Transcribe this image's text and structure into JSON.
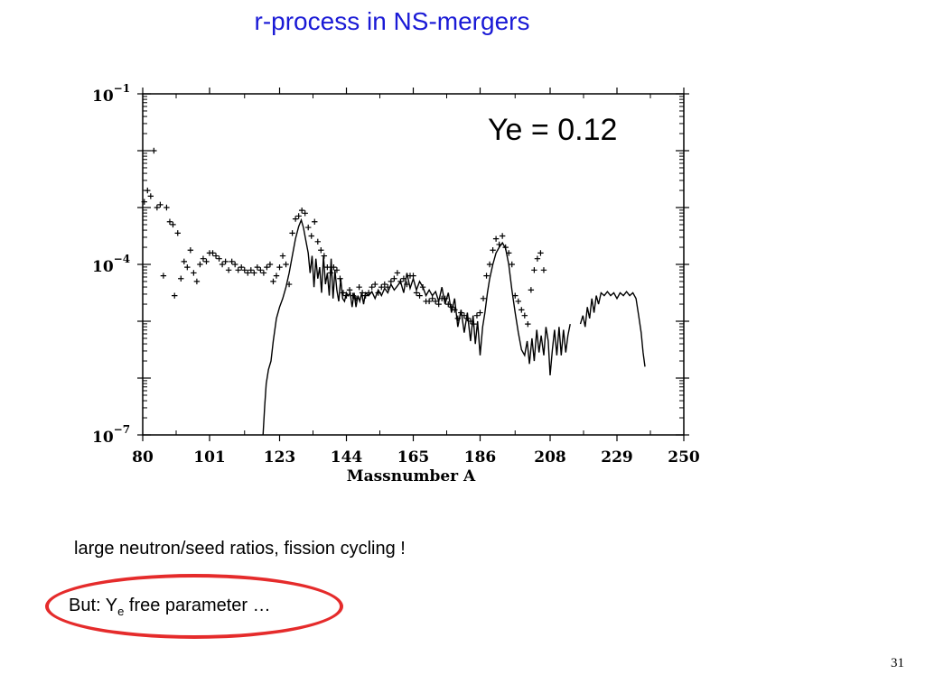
{
  "slide": {
    "title": "r-process in NS-mergers",
    "bullet1": "large neutron/seed ratios, fission cycling !",
    "bullet2_pre": "But: Y",
    "bullet2_sub": "e",
    "bullet2_post": " free parameter …",
    "page_number": "31",
    "highlight_color": "#e52b2b",
    "title_color": "#1a1ad6"
  },
  "chart_data": {
    "type": "line",
    "title": "",
    "annotation": "Ye = 0.12",
    "xlabel": "Massnumber A",
    "ylabel": "",
    "xlim": [
      80,
      250
    ],
    "ylim_log10": [
      -7,
      -1
    ],
    "y_scale": "log",
    "x_ticks": [
      80,
      101,
      123,
      144,
      165,
      186,
      208,
      229,
      250
    ],
    "y_tick_labels": [
      {
        "base": "10",
        "exp": "−1",
        "log10": -1
      },
      {
        "base": "10",
        "exp": "−4",
        "log10": -4
      },
      {
        "base": "10",
        "exp": "−7",
        "log10": -7
      }
    ],
    "grid": false,
    "series": [
      {
        "style": "line",
        "segments": [
          [
            [
              117.8,
              -7.0
            ],
            [
              118.3,
              -6.5
            ],
            [
              118.8,
              -6.1
            ],
            [
              119.5,
              -5.85
            ],
            [
              120.3,
              -5.7
            ],
            [
              121,
              -5.35
            ],
            [
              122,
              -4.95
            ],
            [
              123,
              -4.75
            ],
            [
              124,
              -4.6
            ],
            [
              125,
              -4.4
            ],
            [
              126,
              -4.15
            ],
            [
              127,
              -3.85
            ],
            [
              128,
              -3.55
            ],
            [
              129,
              -3.33
            ],
            [
              129.8,
              -3.22
            ],
            [
              130.5,
              -3.35
            ],
            [
              131.3,
              -3.6
            ],
            [
              132,
              -3.8
            ],
            [
              132.6,
              -4.15
            ],
            [
              133.2,
              -3.85
            ],
            [
              133.8,
              -4.4
            ],
            [
              134.4,
              -3.9
            ],
            [
              135,
              -4.25
            ],
            [
              135.6,
              -4.05
            ],
            [
              136.2,
              -4.5
            ],
            [
              136.8,
              -3.85
            ],
            [
              137.4,
              -4.35
            ],
            [
              138,
              -4.15
            ],
            [
              138.6,
              -4.55
            ],
            [
              139.2,
              -3.9
            ],
            [
              139.8,
              -4.6
            ],
            [
              140.4,
              -4.1
            ],
            [
              141,
              -4.45
            ],
            [
              141.6,
              -4.65
            ],
            [
              142.2,
              -4.25
            ],
            [
              142.8,
              -4.6
            ],
            [
              143.4,
              -4.65
            ],
            [
              144,
              -4.5
            ],
            [
              144.6,
              -4.55
            ],
            [
              145.2,
              -4.5
            ],
            [
              145.8,
              -4.75
            ],
            [
              146.4,
              -4.5
            ],
            [
              147,
              -4.75
            ],
            [
              147.6,
              -4.55
            ],
            [
              148.2,
              -4.65
            ],
            [
              148.8,
              -4.5
            ],
            [
              149.4,
              -4.7
            ],
            [
              150,
              -4.5
            ],
            [
              151,
              -4.55
            ],
            [
              152,
              -4.48
            ],
            [
              153,
              -4.6
            ],
            [
              154,
              -4.45
            ],
            [
              155,
              -4.55
            ],
            [
              156,
              -4.42
            ],
            [
              157,
              -4.5
            ],
            [
              158,
              -4.35
            ],
            [
              159,
              -4.45
            ],
            [
              160,
              -4.38
            ],
            [
              161,
              -4.3
            ],
            [
              162,
              -4.5
            ],
            [
              163,
              -4.15
            ],
            [
              164,
              -4.42
            ],
            [
              165,
              -4.25
            ],
            [
              166,
              -4.45
            ],
            [
              167,
              -4.3
            ],
            [
              168,
              -4.4
            ],
            [
              169,
              -4.55
            ],
            [
              170,
              -4.45
            ],
            [
              171,
              -4.55
            ],
            [
              172,
              -4.48
            ],
            [
              173,
              -4.65
            ],
            [
              174,
              -4.4
            ],
            [
              175,
              -4.7
            ],
            [
              176,
              -4.5
            ],
            [
              177,
              -4.85
            ],
            [
              178,
              -4.6
            ],
            [
              179,
              -5.1
            ],
            [
              180,
              -4.8
            ],
            [
              181,
              -5.2
            ],
            [
              182,
              -4.85
            ],
            [
              183,
              -5.35
            ],
            [
              183.8,
              -4.9
            ],
            [
              184.5,
              -5.4
            ],
            [
              185.2,
              -5.0
            ],
            [
              186,
              -5.6
            ],
            [
              186.8,
              -5.1
            ],
            [
              187.5,
              -4.85
            ],
            [
              188.3,
              -4.5
            ],
            [
              189,
              -4.25
            ],
            [
              190,
              -4.0
            ],
            [
              191,
              -3.8
            ],
            [
              192,
              -3.7
            ],
            [
              193,
              -3.62
            ],
            [
              194,
              -3.72
            ],
            [
              195,
              -4.0
            ],
            [
              196,
              -4.45
            ],
            [
              197,
              -4.85
            ],
            [
              198,
              -5.2
            ],
            [
              199,
              -5.5
            ],
            [
              200,
              -5.6
            ],
            [
              200.8,
              -5.35
            ],
            [
              201.5,
              -5.75
            ],
            [
              202.3,
              -5.3
            ],
            [
              203,
              -5.7
            ],
            [
              203.8,
              -5.15
            ],
            [
              204.5,
              -5.55
            ],
            [
              205.2,
              -5.25
            ],
            [
              206,
              -5.6
            ],
            [
              206.7,
              -5.1
            ],
            [
              207.4,
              -5.35
            ],
            [
              208,
              -5.95
            ],
            [
              208.7,
              -5.5
            ],
            [
              209.4,
              -5.15
            ],
            [
              210.1,
              -5.6
            ],
            [
              210.8,
              -5.1
            ],
            [
              211.5,
              -5.6
            ],
            [
              212.2,
              -5.15
            ],
            [
              212.9,
              -5.55
            ],
            [
              213.6,
              -5.25
            ],
            [
              214.3,
              -5.05
            ]
          ],
          [
            [
              217.5,
              -5.05
            ],
            [
              218.3,
              -4.9
            ],
            [
              219,
              -5.1
            ],
            [
              219.7,
              -4.75
            ],
            [
              220.4,
              -4.95
            ],
            [
              221.1,
              -4.6
            ],
            [
              221.8,
              -4.85
            ],
            [
              222.5,
              -4.55
            ],
            [
              223.2,
              -4.7
            ],
            [
              224,
              -4.5
            ],
            [
              225,
              -4.55
            ],
            [
              226,
              -4.48
            ],
            [
              227,
              -4.55
            ],
            [
              228,
              -4.5
            ],
            [
              229,
              -4.6
            ],
            [
              230,
              -4.5
            ],
            [
              231,
              -4.55
            ],
            [
              232,
              -4.48
            ],
            [
              233,
              -4.55
            ],
            [
              234,
              -4.5
            ],
            [
              235,
              -4.6
            ],
            [
              235.8,
              -4.9
            ],
            [
              236.6,
              -5.2
            ],
            [
              237.2,
              -5.55
            ],
            [
              237.8,
              -5.8
            ]
          ]
        ]
      },
      {
        "style": "plus-markers",
        "points": [
          [
            80.5,
            -2.9
          ],
          [
            81.5,
            -2.7
          ],
          [
            82.5,
            -2.8
          ],
          [
            83.5,
            -2.0
          ],
          [
            84.5,
            -3.0
          ],
          [
            85.5,
            -2.95
          ],
          [
            86.5,
            -4.2
          ],
          [
            87.5,
            -3.0
          ],
          [
            88.5,
            -3.25
          ],
          [
            89.5,
            -3.3
          ],
          [
            90,
            -4.55
          ],
          [
            91,
            -3.45
          ],
          [
            92,
            -4.25
          ],
          [
            93,
            -3.95
          ],
          [
            94,
            -4.05
          ],
          [
            95,
            -3.75
          ],
          [
            96,
            -4.15
          ],
          [
            97,
            -4.3
          ],
          [
            98,
            -4.0
          ],
          [
            99,
            -3.9
          ],
          [
            100,
            -3.95
          ],
          [
            101,
            -3.8
          ],
          [
            102,
            -3.8
          ],
          [
            103,
            -3.85
          ],
          [
            104,
            -3.9
          ],
          [
            105,
            -4.0
          ],
          [
            106,
            -3.95
          ],
          [
            107,
            -4.1
          ],
          [
            108,
            -3.95
          ],
          [
            109,
            -4.0
          ],
          [
            110,
            -4.1
          ],
          [
            111,
            -4.05
          ],
          [
            112,
            -4.1
          ],
          [
            113,
            -4.15
          ],
          [
            114,
            -4.1
          ],
          [
            115,
            -4.15
          ],
          [
            116,
            -4.05
          ],
          [
            117,
            -4.1
          ],
          [
            118,
            -4.15
          ],
          [
            119,
            -4.05
          ],
          [
            120,
            -4.0
          ],
          [
            121,
            -4.3
          ],
          [
            122,
            -4.2
          ],
          [
            123,
            -4.05
          ],
          [
            124,
            -3.85
          ],
          [
            125,
            -4.0
          ],
          [
            126,
            -4.35
          ],
          [
            127,
            -3.45
          ],
          [
            128,
            -3.2
          ],
          [
            129,
            -3.15
          ],
          [
            130,
            -3.05
          ],
          [
            131,
            -3.1
          ],
          [
            132,
            -3.35
          ],
          [
            133,
            -3.5
          ],
          [
            134,
            -3.25
          ],
          [
            135,
            -3.6
          ],
          [
            136,
            -3.75
          ],
          [
            137,
            -3.85
          ],
          [
            138,
            -4.05
          ],
          [
            139,
            -4.15
          ],
          [
            140,
            -4.05
          ],
          [
            141,
            -4.1
          ],
          [
            142,
            -4.25
          ],
          [
            143,
            -4.5
          ],
          [
            144,
            -4.55
          ],
          [
            145,
            -4.45
          ],
          [
            146,
            -4.55
          ],
          [
            147,
            -4.6
          ],
          [
            148,
            -4.4
          ],
          [
            149,
            -4.5
          ],
          [
            150,
            -4.55
          ],
          [
            151,
            -4.5
          ],
          [
            152,
            -4.4
          ],
          [
            153,
            -4.35
          ],
          [
            154,
            -4.5
          ],
          [
            155,
            -4.4
          ],
          [
            156,
            -4.35
          ],
          [
            157,
            -4.4
          ],
          [
            158,
            -4.3
          ],
          [
            159,
            -4.25
          ],
          [
            160,
            -4.15
          ],
          [
            161,
            -4.3
          ],
          [
            162,
            -4.25
          ],
          [
            163,
            -4.35
          ],
          [
            164,
            -4.2
          ],
          [
            165,
            -4.2
          ],
          [
            166,
            -4.5
          ],
          [
            167,
            -4.55
          ],
          [
            168,
            -4.4
          ],
          [
            169,
            -4.65
          ],
          [
            170,
            -4.65
          ],
          [
            171,
            -4.6
          ],
          [
            172,
            -4.65
          ],
          [
            173,
            -4.7
          ],
          [
            174,
            -4.6
          ],
          [
            175,
            -4.6
          ],
          [
            176,
            -4.7
          ],
          [
            177,
            -4.75
          ],
          [
            178,
            -4.8
          ],
          [
            179,
            -4.95
          ],
          [
            180,
            -4.85
          ],
          [
            181,
            -4.9
          ],
          [
            182,
            -4.95
          ],
          [
            183,
            -5.0
          ],
          [
            184,
            -5.05
          ],
          [
            185,
            -4.9
          ],
          [
            186,
            -4.85
          ],
          [
            187,
            -4.6
          ],
          [
            188,
            -4.2
          ],
          [
            189,
            -4.0
          ],
          [
            190,
            -3.75
          ],
          [
            191,
            -3.55
          ],
          [
            192,
            -3.65
          ],
          [
            193,
            -3.5
          ],
          [
            194,
            -3.7
          ],
          [
            195,
            -3.8
          ],
          [
            196,
            -4.0
          ],
          [
            197,
            -4.55
          ],
          [
            198,
            -4.65
          ],
          [
            199,
            -4.8
          ],
          [
            200,
            -4.9
          ],
          [
            201,
            -5.05
          ],
          [
            202,
            -4.45
          ],
          [
            203,
            -4.1
          ],
          [
            204,
            -3.9
          ],
          [
            205,
            -3.8
          ],
          [
            206,
            -4.1
          ]
        ]
      }
    ]
  }
}
